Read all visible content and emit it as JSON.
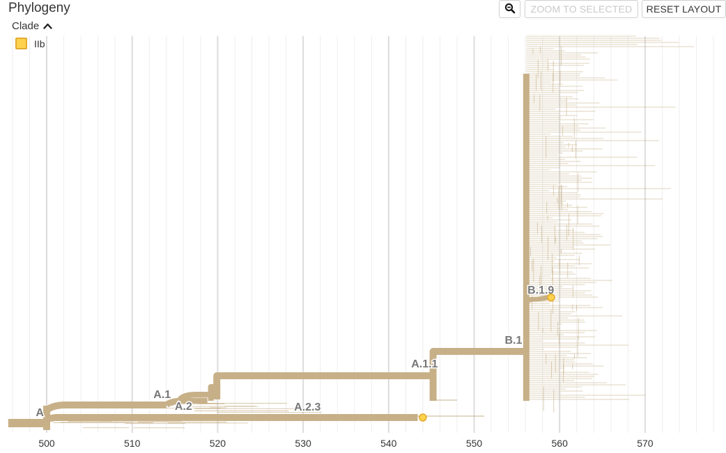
{
  "panel": {
    "title": "Phylogeny"
  },
  "controls": {
    "zoom_icon": "magnifier-minus-icon",
    "zoom_to_selected": "ZOOM TO SELECTED",
    "reset_layout": "RESET LAYOUT"
  },
  "legend": {
    "toggle_label": "Clade",
    "toggle_icon": "chevron-up-icon",
    "items": [
      {
        "label": "IIb",
        "color": "#ffd24d"
      }
    ]
  },
  "chart_data": {
    "type": "phylogenetic-tree",
    "x_axis": {
      "ticks": [
        500,
        510,
        520,
        530,
        540,
        550,
        560,
        570
      ],
      "range": [
        496,
        579
      ],
      "grid": true
    },
    "colors": {
      "branch": "#c7b088",
      "tip": "#ffd24d",
      "tip_stroke": "#e5a82a",
      "grid_major": "#dcdcdc",
      "grid_minor": "#eeeeee"
    },
    "clade_labels": [
      {
        "label": "A",
        "x": 499.2
      },
      {
        "label": "A.1",
        "x": 513.5
      },
      {
        "label": "A.2",
        "x": 516.0
      },
      {
        "label": "A.2.3",
        "x": 530.5
      },
      {
        "label": "A.1.1",
        "x": 544.2
      },
      {
        "label": "B.1",
        "x": 554.6
      },
      {
        "label": "B.1.9",
        "x": 557.8
      }
    ],
    "highlighted_tips": [
      {
        "clade": "IIb",
        "x": 544.0
      },
      {
        "clade": "IIb",
        "x": 559.0
      }
    ]
  }
}
